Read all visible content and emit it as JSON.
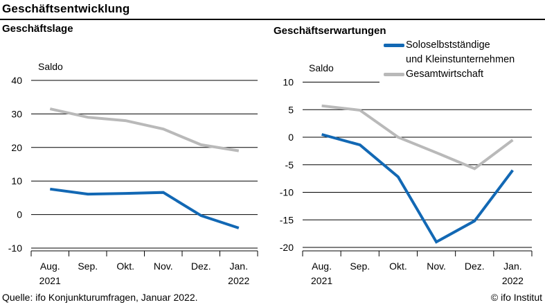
{
  "header": {
    "title": "Geschäftsentwicklung"
  },
  "footer": {
    "source": "Quelle: ifo Konjunkturumfragen, Januar 2022.",
    "copyright": "© ifo Institut"
  },
  "colors": {
    "series_blue": "#1268b4",
    "series_gray": "#b9b9b9",
    "axis": "#000000",
    "text": "#000000"
  },
  "legend": {
    "position": "top-right",
    "rows": [
      {
        "text": "Soloselbstständige",
        "swatch": "blue"
      },
      {
        "text": "und Kleinstunternehmen",
        "swatch": "none"
      },
      {
        "text": "Gesamtwirtschaft",
        "swatch": "gray"
      }
    ]
  },
  "chart_data": [
    {
      "type": "line",
      "title": "Geschäftslage",
      "ylabel": "Saldo",
      "categories": [
        "Aug.",
        "Sep.",
        "Okt.",
        "Nov.",
        "Dez.",
        "Jan."
      ],
      "year_labels": {
        "first": "2021",
        "last": "2022"
      },
      "ylim": [
        -10,
        40
      ],
      "ytick_step": 10,
      "grid": true,
      "series": [
        {
          "name": "Gesamtwirtschaft",
          "color": "#b9b9b9",
          "values": [
            31.5,
            29.0,
            28.0,
            25.5,
            20.8,
            19.0
          ]
        },
        {
          "name": "Soloselbstständige und Kleinstunternehmen",
          "color": "#1268b4",
          "values": [
            7.6,
            6.1,
            6.3,
            6.6,
            -0.3,
            -4.0
          ]
        }
      ]
    },
    {
      "type": "line",
      "title": "Geschäftserwartungen",
      "ylabel": "Saldo",
      "categories": [
        "Aug.",
        "Sep.",
        "Okt.",
        "Nov.",
        "Dez.",
        "Jan."
      ],
      "year_labels": {
        "first": "2021",
        "last": "2022"
      },
      "ylim": [
        -20,
        10
      ],
      "ytick_step": 5,
      "grid": true,
      "series": [
        {
          "name": "Gesamtwirtschaft",
          "color": "#b9b9b9",
          "values": [
            5.7,
            4.9,
            0.0,
            -2.8,
            -5.7,
            -0.5
          ]
        },
        {
          "name": "Soloselbstständige und Kleinstunternehmen",
          "color": "#1268b4",
          "values": [
            0.5,
            -1.4,
            -7.2,
            -19.0,
            -15.2,
            -6.0
          ]
        }
      ]
    }
  ]
}
